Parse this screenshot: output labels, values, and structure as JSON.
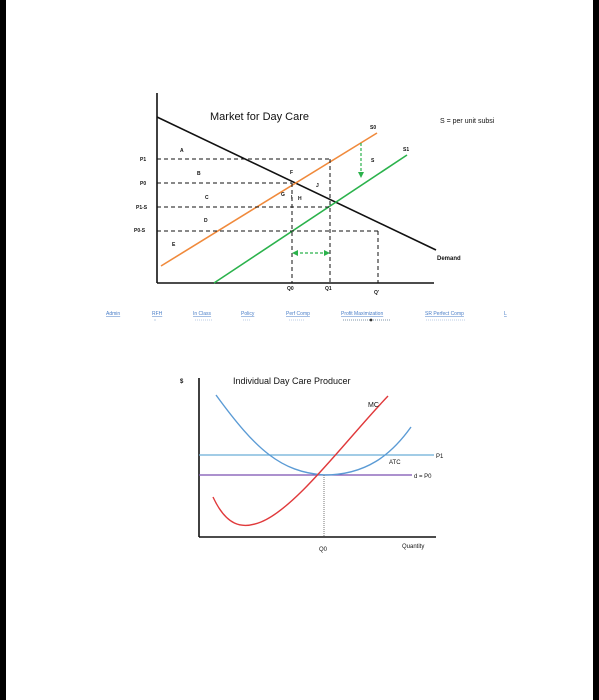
{
  "top_chart": {
    "title": "Market for Day Care",
    "subsidy_note": "S = per unit subsi",
    "supply_labels": {
      "s0": "S0",
      "s1": "S1",
      "s": "S"
    },
    "demand_label": "Demand",
    "price_labels": {
      "p1": "P1",
      "p0": "P0",
      "p1s": "P1-S",
      "p0s": "P0-S"
    },
    "qty_labels": {
      "q0": "Q0",
      "q1": "Q1",
      "qprime": "Q'"
    },
    "area_labels": {
      "a": "A",
      "b": "B",
      "c": "C",
      "d": "D",
      "e": "E",
      "f": "F",
      "g": "G",
      "h": "H",
      "i": "I",
      "j": "J"
    },
    "colors": {
      "s0": "#f08a3c",
      "s1": "#2bb24c",
      "demand": "#111111",
      "guides": "#111111"
    }
  },
  "nav_strip": {
    "items": [
      "Admin",
      "RFH",
      "In Class",
      "Policy",
      "Perf Comp",
      "Profit Maximization",
      "SR Perfect Comp",
      "L"
    ]
  },
  "bottom_chart": {
    "title": "Individual Day Care Producer",
    "y_axis_label": "$",
    "x_axis_label": "Quantity",
    "mc_label": "MC",
    "atc_label": "ATC",
    "p1_label": "P1",
    "d_p0_label": "d = P0",
    "q0_label": "Q0",
    "colors": {
      "mc": "#e0393b",
      "atc": "#5b9bd5",
      "p1_line": "#6aaed6",
      "d_line": "#7a4fb0"
    }
  }
}
